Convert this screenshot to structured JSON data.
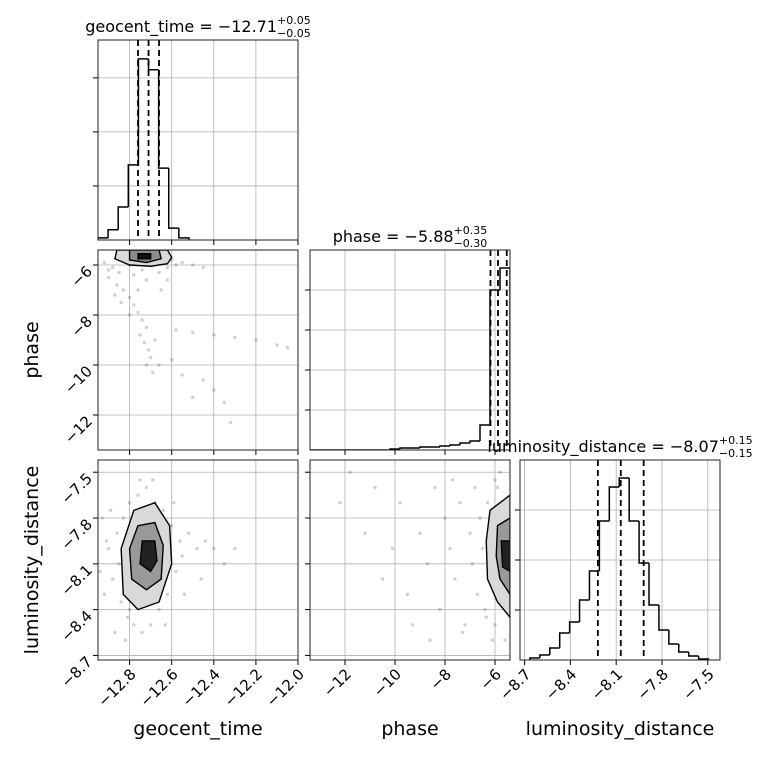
{
  "chart_data": [
    {
      "type": "histogram",
      "title": "geocent_time = −12.71",
      "title_sup": "+0.05",
      "title_sub": "−0.05",
      "bins": [
        -12.95,
        -12.902,
        -12.854,
        -12.806,
        -12.758,
        -12.71,
        -12.662,
        -12.614,
        -12.566,
        -12.518
      ],
      "counts": [
        0.04,
        0.19,
        0.61,
        1.39,
        3.35,
        3.15,
        1.33,
        0.22,
        0.04
      ],
      "quantiles": [
        -12.76,
        -12.71,
        -12.66
      ],
      "color": "#000000",
      "xlim": [
        -12.95,
        -12.0
      ],
      "xticks": [
        -12.8,
        -12.6,
        -12.4,
        -12.2,
        -12.0
      ],
      "ylim": [
        0,
        3.7
      ],
      "yticks": [
        1,
        2,
        3
      ],
      "grid": true
    },
    {
      "type": "scatter",
      "ylabel": "phase",
      "color": "#000000",
      "x": [
        -12.92,
        -12.88,
        -12.85,
        -12.82,
        -12.8,
        -12.78,
        -12.76,
        -12.74,
        -12.72,
        -12.7,
        -12.68,
        -12.66,
        -12.64,
        -12.62,
        -12.6,
        -12.58,
        -12.55,
        -12.5,
        -12.45,
        -12.9,
        -12.86,
        -12.83,
        -12.8,
        -12.78,
        -12.76,
        -12.74,
        -12.72,
        -12.75,
        -12.73,
        -12.71,
        -12.7,
        -12.72,
        -12.69,
        -12.66,
        -12.6,
        -12.55,
        -12.45,
        -12.4,
        -12.35,
        -12.32,
        -12.5,
        -12.58,
        -12.5,
        -12.4,
        -12.3,
        -12.2,
        -12.1,
        -12.05,
        -12.84,
        -12.8,
        -12.9,
        -12.87,
        -12.65,
        -12.62,
        -12.68,
        -12.76
      ],
      "y": [
        -5.9,
        -6.1,
        -6.3,
        -5.6,
        -6.0,
        -6.4,
        -5.8,
        -6.2,
        -6.6,
        -5.7,
        -6.0,
        -6.3,
        -5.9,
        -6.1,
        -5.8,
        -6.0,
        -5.9,
        -6.0,
        -6.1,
        -6.5,
        -6.8,
        -7.0,
        -7.3,
        -7.6,
        -7.9,
        -8.2,
        -8.5,
        -8.8,
        -9.1,
        -9.4,
        -9.7,
        -10.0,
        -10.3,
        -10.0,
        -9.8,
        -10.4,
        -10.6,
        -11.0,
        -11.5,
        -12.3,
        -11.3,
        -8.6,
        -8.7,
        -8.8,
        -8.9,
        -9.0,
        -9.2,
        -9.3,
        -7.5,
        -8.0,
        -6.2,
        -7.2,
        -7.0,
        -6.6,
        -9.0,
        -7.0
      ],
      "contours": [
        {
          "fill": "#d9d9d9",
          "x": [
            -12.86,
            -12.87,
            -12.8,
            -12.7,
            -12.62,
            -12.6,
            -12.62
          ],
          "y": [
            -5.4,
            -5.75,
            -6.0,
            -6.05,
            -5.95,
            -5.7,
            -5.4
          ]
        },
        {
          "fill": "#8c8c8c",
          "x": [
            -12.8,
            -12.8,
            -12.72,
            -12.65,
            -12.66
          ],
          "y": [
            -5.4,
            -5.8,
            -5.9,
            -5.75,
            -5.4
          ]
        },
        {
          "fill": "#111111",
          "x": [
            -12.76,
            -12.76,
            -12.7,
            -12.7
          ],
          "y": [
            -5.55,
            -5.75,
            -5.75,
            -5.55
          ]
        }
      ],
      "xlim": [
        -12.95,
        -12.0
      ],
      "xticks": [
        -12.8,
        -12.6,
        -12.4,
        -12.2,
        -12.0
      ],
      "ylim": [
        -13.4,
        -5.4
      ],
      "yticks": [
        {
          "value": -6,
          "label": "−6"
        },
        {
          "value": -8,
          "label": "−8"
        },
        {
          "value": -10,
          "label": "−10"
        },
        {
          "value": -12,
          "label": "−12"
        }
      ],
      "grid": true
    },
    {
      "type": "histogram",
      "title": "phase = −5.88",
      "title_sup": "+0.35",
      "title_sub": "−0.30",
      "bins": [
        -13.4,
        -13.0,
        -12.6,
        -12.2,
        -11.8,
        -11.4,
        -11.0,
        -10.6,
        -10.2,
        -9.8,
        -9.4,
        -9.0,
        -8.6,
        -8.2,
        -7.8,
        -7.4,
        -7.0,
        -6.6,
        -6.2,
        -5.8,
        -5.4
      ],
      "counts": [
        0,
        0,
        0,
        0,
        0,
        0,
        0,
        0,
        1,
        2,
        2,
        3,
        3,
        4,
        5,
        7,
        9,
        25,
        160,
        182
      ],
      "quantiles": [
        -6.18,
        -5.88,
        -5.53
      ],
      "color": "#000000",
      "xlim": [
        -13.4,
        -5.4
      ],
      "xticks": [
        -12,
        -10,
        -8,
        -6
      ],
      "ylim": [
        0,
        200
      ],
      "yticks": [
        40,
        80,
        120,
        160
      ],
      "grid": true
    },
    {
      "type": "scatter",
      "xlabel": "geocent_time",
      "ylabel": "luminosity_distance",
      "color": "#000000",
      "x": [
        -12.9,
        -12.88,
        -12.86,
        -12.84,
        -12.83,
        -12.81,
        -12.8,
        -12.78,
        -12.76,
        -12.74,
        -12.72,
        -12.7,
        -12.68,
        -12.66,
        -12.64,
        -12.62,
        -12.6,
        -12.58,
        -12.56,
        -12.55,
        -12.92,
        -12.91,
        -12.87,
        -12.82,
        -12.75,
        -12.69,
        -12.63,
        -12.59,
        -12.54,
        -12.52,
        -12.48,
        -12.44,
        -12.4,
        -12.35,
        -12.3,
        -12.46,
        -12.93,
        -12.85,
        -12.79,
        -12.77,
        -12.73,
        -12.71,
        -12.67,
        -12.65,
        -12.61,
        -12.94,
        -12.89,
        -12.8
      ],
      "y": [
        -8.0,
        -8.2,
        -7.9,
        -8.35,
        -7.8,
        -8.45,
        -7.7,
        -8.5,
        -7.65,
        -8.55,
        -7.6,
        -8.5,
        -7.7,
        -8.4,
        -7.75,
        -8.3,
        -7.85,
        -8.15,
        -7.95,
        -8.05,
        -8.3,
        -7.95,
        -8.55,
        -8.6,
        -7.55,
        -7.55,
        -8.5,
        -7.7,
        -8.3,
        -7.9,
        -8.0,
        -7.95,
        -8.0,
        -8.1,
        -8.0,
        -8.2,
        -7.8,
        -8.1,
        -8.25,
        -7.9,
        -8.35,
        -7.8,
        -8.2,
        -7.95,
        -8.1,
        -8.15,
        -7.75,
        -8.4
      ],
      "contours": [
        {
          "fill": "#d9d9d9",
          "x": [
            -12.78,
            -12.68,
            -12.61,
            -12.6,
            -12.66,
            -12.76,
            -12.83,
            -12.84
          ],
          "y": [
            -7.75,
            -7.7,
            -7.85,
            -8.1,
            -8.35,
            -8.4,
            -8.3,
            -8.0
          ]
        },
        {
          "fill": "#999999",
          "x": [
            -12.76,
            -12.68,
            -12.64,
            -12.65,
            -12.72,
            -12.79,
            -12.8
          ],
          "y": [
            -7.85,
            -7.83,
            -7.98,
            -8.2,
            -8.27,
            -8.2,
            -8.0
          ]
        },
        {
          "fill": "#222222",
          "x": [
            -12.74,
            -12.68,
            -12.67,
            -12.7,
            -12.75
          ],
          "y": [
            -7.95,
            -7.95,
            -8.08,
            -8.15,
            -8.1
          ]
        }
      ],
      "xlim": [
        -12.95,
        -12.0
      ],
      "xticks": [
        {
          "value": -12.8,
          "label": "−12.8"
        },
        {
          "value": -12.6,
          "label": "−12.6"
        },
        {
          "value": -12.4,
          "label": "−12.4"
        },
        {
          "value": -12.2,
          "label": "−12.2"
        },
        {
          "value": -12.0,
          "label": "−12.0"
        }
      ],
      "ylim": [
        -8.73,
        -7.42
      ],
      "yticks": [
        {
          "value": -7.5,
          "label": "−7.5"
        },
        {
          "value": -7.8,
          "label": "−7.8"
        },
        {
          "value": -8.1,
          "label": "−8.1"
        },
        {
          "value": -8.4,
          "label": "−8.4"
        },
        {
          "value": -8.7,
          "label": "−8.7"
        }
      ],
      "grid": true
    },
    {
      "type": "scatter",
      "xlabel": "phase",
      "color": "#000000",
      "x": [
        -11.8,
        -11.2,
        -10.5,
        -12.2,
        -9.8,
        -9.5,
        -9.0,
        -8.7,
        -8.4,
        -8.2,
        -8.0,
        -7.8,
        -7.6,
        -7.4,
        -7.2,
        -7.0,
        -6.9,
        -6.8,
        -6.7,
        -6.6,
        -6.5,
        -6.4,
        -6.3,
        -6.2,
        -6.1,
        -6.0,
        -5.9,
        -5.8,
        -5.7,
        -5.6,
        -5.5,
        -5.5,
        -5.6,
        -5.7,
        -5.8,
        -6.0,
        -6.1,
        -7.3,
        -8.6,
        -10.1,
        -10.8,
        -9.3,
        -7.7,
        -6.35,
        -5.45
      ],
      "y": [
        -7.5,
        -7.9,
        -8.2,
        -7.7,
        -7.7,
        -8.3,
        -7.9,
        -8.1,
        -7.6,
        -8.4,
        -7.8,
        -8.0,
        -8.2,
        -7.7,
        -8.5,
        -7.9,
        -8.1,
        -7.6,
        -8.3,
        -7.8,
        -8.0,
        -8.4,
        -7.7,
        -8.2,
        -7.9,
        -8.5,
        -7.6,
        -8.3,
        -7.8,
        -8.6,
        -7.7,
        -8.4,
        -8.0,
        -8.2,
        -7.5,
        -7.55,
        -8.6,
        -8.55,
        -8.6,
        -8.0,
        -7.6,
        -8.5,
        -7.55,
        -8.45,
        -8.1
      ],
      "contours": [
        {
          "fill": "#d9d9d9",
          "x": [
            -6.2,
            -5.4,
            -5.4,
            -5.9,
            -6.3,
            -6.35
          ],
          "y": [
            -7.75,
            -7.65,
            -8.45,
            -8.35,
            -8.2,
            -7.95
          ]
        },
        {
          "fill": "#999999",
          "x": [
            -5.9,
            -5.4,
            -5.4,
            -5.8,
            -5.95
          ],
          "y": [
            -7.85,
            -7.8,
            -8.3,
            -8.2,
            -8.05
          ]
        },
        {
          "fill": "#222222",
          "x": [
            -5.75,
            -5.4,
            -5.4,
            -5.7
          ],
          "y": [
            -7.95,
            -7.95,
            -8.15,
            -8.12
          ]
        }
      ],
      "xlim": [
        -13.4,
        -5.4
      ],
      "xticks": [
        {
          "value": -12,
          "label": "−12"
        },
        {
          "value": -10,
          "label": "−10"
        },
        {
          "value": -8,
          "label": "−8"
        },
        {
          "value": -6,
          "label": "−6"
        }
      ],
      "ylim": [
        -8.73,
        -7.42
      ],
      "yticks": [
        -7.5,
        -7.8,
        -8.1,
        -8.4,
        -8.7
      ],
      "grid": true
    },
    {
      "type": "histogram",
      "xlabel": "luminosity_distance",
      "title": "luminosity_distance = −8.07",
      "title_sup": "+0.15",
      "title_sub": "−0.15",
      "bins": [
        -8.665,
        -8.6,
        -8.535,
        -8.47,
        -8.405,
        -8.34,
        -8.275,
        -8.21,
        -8.145,
        -8.08,
        -8.015,
        -7.95,
        -7.885,
        -7.82,
        -7.755,
        -7.69,
        -7.625,
        -7.56,
        -7.495
      ],
      "counts": [
        2,
        5,
        12,
        27,
        38,
        60,
        89,
        139,
        173,
        182,
        139,
        97,
        55,
        30,
        16,
        8,
        4,
        1
      ],
      "quantiles": [
        -8.22,
        -8.07,
        -7.92
      ],
      "color": "#000000",
      "xlim": [
        -8.73,
        -7.42
      ],
      "xticks": [
        {
          "value": -8.7,
          "label": "−8.7"
        },
        {
          "value": -8.4,
          "label": "−8.4"
        },
        {
          "value": -8.1,
          "label": "−8.1"
        },
        {
          "value": -7.8,
          "label": "−7.8"
        },
        {
          "value": -7.5,
          "label": "−7.5"
        }
      ],
      "ylim": [
        0,
        200
      ],
      "yticks": [
        50,
        100,
        150
      ],
      "grid": true
    }
  ]
}
